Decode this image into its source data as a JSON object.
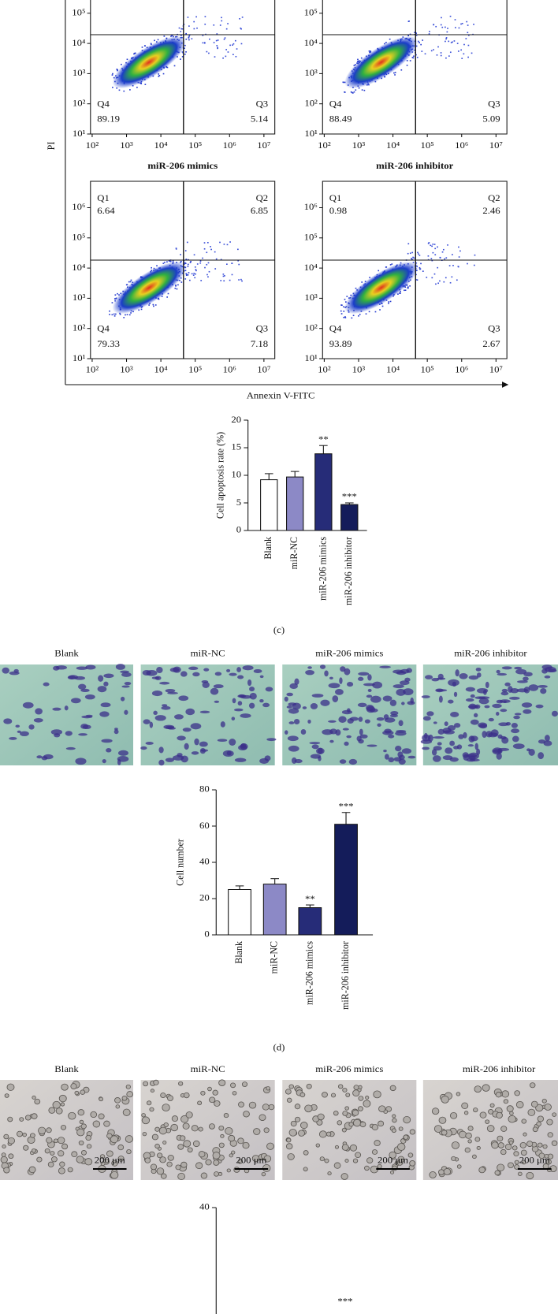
{
  "flow": {
    "y_axis_label": "PI",
    "x_axis_label": "Annexin V-FITC",
    "plots": [
      {
        "title": "miR-206 mimics",
        "yticks": [
          "10⁵",
          "10⁴",
          "10³",
          "10²",
          "10¹"
        ],
        "xticks": [
          "10²",
          "10³",
          "10⁴",
          "10⁵",
          "10⁶",
          "10⁷"
        ],
        "quadrants": [
          {
            "name": "Q4",
            "value": 89.19
          },
          {
            "name": "Q3",
            "value": 5.14
          }
        ]
      },
      {
        "title": "miR-206 inhibitor",
        "yticks": [
          "10⁵",
          "10⁴",
          "10³",
          "10²",
          "10¹"
        ],
        "xticks": [
          "10²",
          "10³",
          "10⁴",
          "10⁵",
          "10⁶",
          "10⁷"
        ],
        "quadrants": [
          {
            "name": "Q4",
            "value": 88.49
          },
          {
            "name": "Q3",
            "value": 5.09
          }
        ]
      },
      {
        "yticks": [
          "10⁶",
          "10⁵",
          "10⁴",
          "10³",
          "10²",
          "10¹"
        ],
        "xticks": [
          "10²",
          "10³",
          "10⁴",
          "10⁵",
          "10⁶",
          "10⁷"
        ],
        "quadrants": [
          {
            "name": "Q1",
            "value": 6.64
          },
          {
            "name": "Q2",
            "value": 6.85
          },
          {
            "name": "Q4",
            "value": 79.33
          },
          {
            "name": "Q3",
            "value": 7.18
          }
        ]
      },
      {
        "yticks": [
          "10⁶",
          "10⁵",
          "10⁴",
          "10³",
          "10²",
          "10¹"
        ],
        "xticks": [
          "10²",
          "10³",
          "10⁴",
          "10⁵",
          "10⁶",
          "10⁷"
        ],
        "quadrants": [
          {
            "name": "Q1",
            "value": 0.98
          },
          {
            "name": "Q2",
            "value": 2.46
          },
          {
            "name": "Q4",
            "value": 93.89
          },
          {
            "name": "Q3",
            "value": 2.67
          }
        ]
      }
    ]
  },
  "panel_labels": [
    "(c)",
    "(d)"
  ],
  "images_d": {
    "titles": [
      "Blank",
      "miR-NC",
      "miR-206 mimics",
      "miR-206 inhibitor"
    ]
  },
  "images_e": {
    "titles": [
      "Blank",
      "miR-NC",
      "miR-206 mimics",
      "miR-206 inhibitor"
    ],
    "scale_bar": "200 μm"
  },
  "chart_data": [
    {
      "type": "bar",
      "ylabel": "Cell apoptosis rate (%)",
      "categories": [
        "Blank",
        "miR-NC",
        "miR-206 mimics",
        "miR-206 inhibitor"
      ],
      "values": [
        9.2,
        9.7,
        13.9,
        4.7
      ],
      "errors": [
        1.1,
        1.0,
        1.5,
        0.3
      ],
      "annotations": [
        null,
        null,
        "**",
        "***"
      ],
      "colors": [
        "#ffffff",
        "#8c89c6",
        "#262c78",
        "#141c5a"
      ],
      "ylim": [
        0,
        20
      ],
      "yticks": [
        0,
        5,
        10,
        15,
        20
      ]
    },
    {
      "type": "bar",
      "ylabel": "Cell number",
      "categories": [
        "Blank",
        "miR-NC",
        "miR-206 mimics",
        "miR-206 inhibitor"
      ],
      "values": [
        25,
        28,
        15,
        61
      ],
      "errors": [
        2,
        3,
        1.5,
        6.5
      ],
      "annotations": [
        null,
        null,
        "**",
        "***"
      ],
      "colors": [
        "#ffffff",
        "#8c89c6",
        "#262c78",
        "#141c5a"
      ],
      "ylim": [
        0,
        80
      ],
      "yticks": [
        0,
        20,
        40,
        60,
        80
      ]
    },
    {
      "type": "bar",
      "ylim": [
        0,
        40
      ],
      "yticks": [
        40
      ],
      "annotation": "***"
    }
  ]
}
